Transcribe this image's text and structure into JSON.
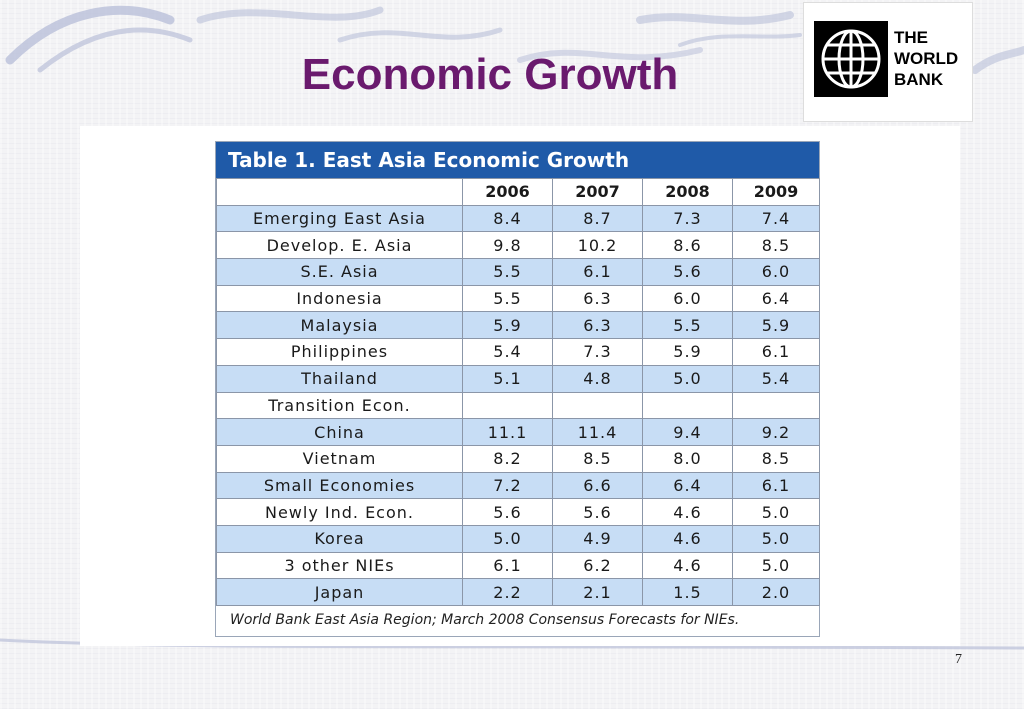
{
  "slide": {
    "title": "Economic Growth",
    "page_number": "7"
  },
  "logo": {
    "line1": "THE",
    "line2": "WORLD",
    "line3": "BANK"
  },
  "table": {
    "title": "Table 1. East Asia Economic Growth",
    "headers": [
      "",
      "2006",
      "2007",
      "2008",
      "2009"
    ],
    "rows": [
      {
        "label": "Emerging East Asia",
        "values": [
          "8.4",
          "8.7",
          "7.3",
          "7.4"
        ]
      },
      {
        "label": "Develop. E. Asia",
        "values": [
          "9.8",
          "10.2",
          "8.6",
          "8.5"
        ]
      },
      {
        "label": "S.E. Asia",
        "values": [
          "5.5",
          "6.1",
          "5.6",
          "6.0"
        ]
      },
      {
        "label": "Indonesia",
        "values": [
          "5.5",
          "6.3",
          "6.0",
          "6.4"
        ]
      },
      {
        "label": "Malaysia",
        "values": [
          "5.9",
          "6.3",
          "5.5",
          "5.9"
        ]
      },
      {
        "label": "Philippines",
        "values": [
          "5.4",
          "7.3",
          "5.9",
          "6.1"
        ]
      },
      {
        "label": "Thailand",
        "values": [
          "5.1",
          "4.8",
          "5.0",
          "5.4"
        ]
      },
      {
        "label": "Transition Econ.",
        "values": [
          "",
          "",
          "",
          ""
        ]
      },
      {
        "label": "China",
        "values": [
          "11.1",
          "11.4",
          "9.4",
          "9.2"
        ]
      },
      {
        "label": "Vietnam",
        "values": [
          "8.2",
          "8.5",
          "8.0",
          "8.5"
        ]
      },
      {
        "label": "Small Economies",
        "values": [
          "7.2",
          "6.6",
          "6.4",
          "6.1"
        ]
      },
      {
        "label": "Newly Ind. Econ.",
        "values": [
          "5.6",
          "5.6",
          "4.6",
          "5.0"
        ]
      },
      {
        "label": "Korea",
        "values": [
          "5.0",
          "4.9",
          "4.6",
          "5.0"
        ]
      },
      {
        "label": "3 other NIEs",
        "values": [
          "6.1",
          "6.2",
          "4.6",
          "5.0"
        ]
      },
      {
        "label": "Japan",
        "values": [
          "2.2",
          "2.1",
          "1.5",
          "2.0"
        ]
      }
    ],
    "row_shading": [
      "blue",
      "white",
      "blue",
      "white",
      "blue",
      "white",
      "blue",
      "white",
      "blue",
      "white",
      "blue",
      "white",
      "blue",
      "white",
      "blue"
    ],
    "note": "World Bank East Asia Region; March 2008 Consensus Forecasts for NIEs."
  },
  "colors": {
    "title": "#6a1a6e",
    "table_header_bar": "#1f5aa8",
    "row_blue": "#c7ddf5"
  }
}
